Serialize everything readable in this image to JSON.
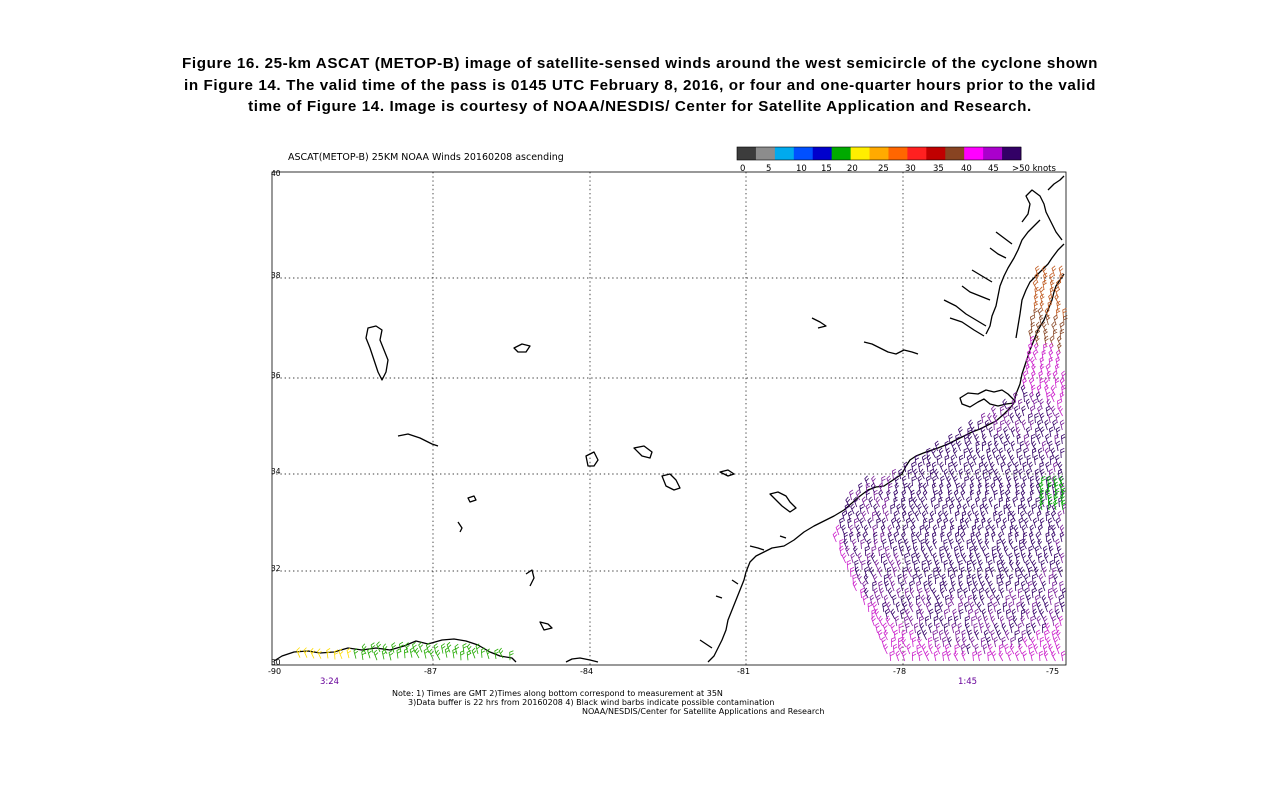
{
  "caption": {
    "line1": "Figure 16.  25-km ASCAT (METOP-B) image of satellite-sensed winds around the west semicircle of the cyclone shown",
    "line2": "in Figure 14.  The valid time of the pass is 0145 UTC February 8, 2016, or four and one-quarter hours prior to the valid",
    "line3": "time of Figure 14.  Image is courtesy of NOAA/NESDIS/ Center for Satellite Application and Research."
  },
  "map": {
    "title": "ASCAT(METOP-B) 25KM NOAA Winds 20160208 ascending",
    "lon_labels": [
      "-90",
      "-87",
      "-84",
      "-81",
      "-78",
      "-75"
    ],
    "lat_labels": [
      "30",
      "32",
      "34",
      "36",
      "38",
      "40"
    ],
    "pass_times": [
      "3:24",
      "1:45"
    ],
    "notes": [
      "Note: 1) Times are GMT 2)Times along bottom correspond to measurement at 35N",
      "3)Data buffer is 22 hrs from 20160208 4) Black wind barbs indicate possible contamination",
      "NOAA/NESDIS/Center for Satellite Applications and Research"
    ]
  },
  "legend": {
    "ticks": [
      "0",
      "5",
      "10",
      "15",
      "20",
      "25",
      "30",
      "35",
      "40",
      "45",
      ">50 knots"
    ],
    "colors": [
      "#3c3c3c",
      "#8c8c8c",
      "#00aaee",
      "#0050ff",
      "#0000cc",
      "#00aa00",
      "#ffee00",
      "#ffaa00",
      "#ff6600",
      "#ff2020",
      "#c00000",
      "#884422",
      "#ff00ff",
      "#aa00cc",
      "#330066"
    ]
  },
  "time_color": "#660099"
}
